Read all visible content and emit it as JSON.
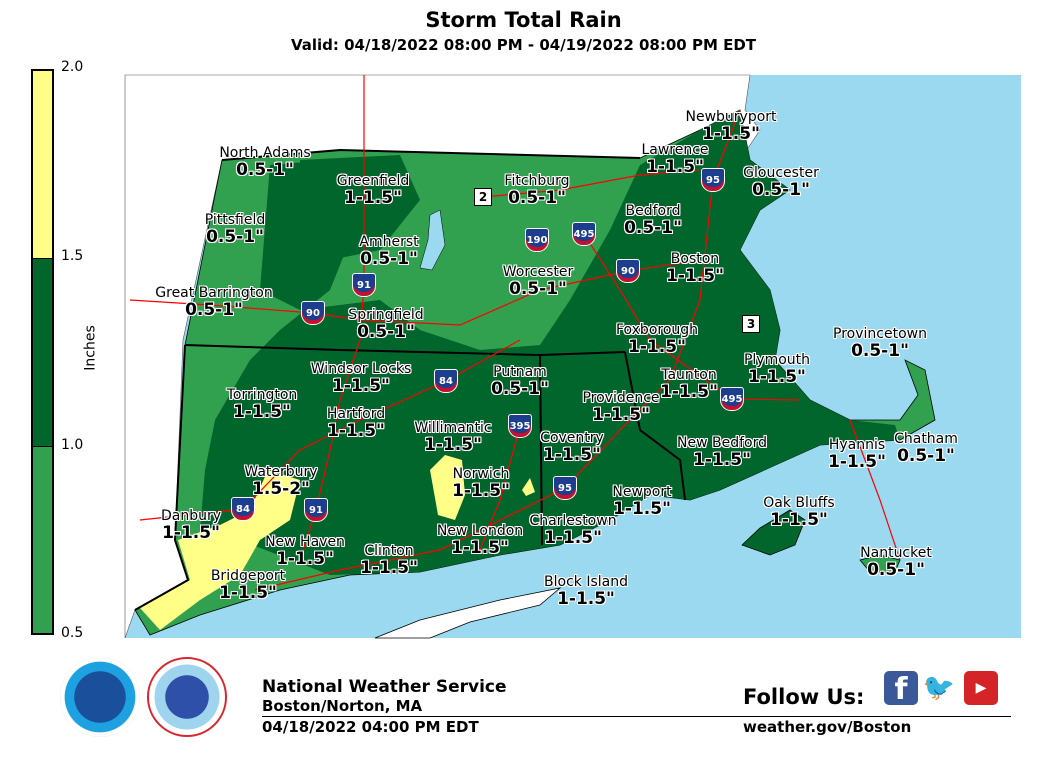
{
  "header": {
    "title": "Storm Total Rain",
    "subtitle": "Valid: 04/18/2022 08:00 PM - 04/19/2022 08:00 PM EDT"
  },
  "legend": {
    "units": "Inches",
    "ticks": [
      "2.0",
      "1.5",
      "1.0",
      "0.5"
    ],
    "bins": [
      {
        "range": "1.5-2.0",
        "color": "#ffff88"
      },
      {
        "range": "1.0-1.5",
        "color": "#00662b"
      },
      {
        "range": "0.5-1.0",
        "color": "#31a150"
      }
    ]
  },
  "colors": {
    "ocean": "#9ad9ef",
    "outside_land": "#ffffff",
    "roads": "#ff0000",
    "borders": "#000000"
  },
  "locations": [
    {
      "name": "North Adams",
      "value": "0.5-1\""
    },
    {
      "name": "Greenfield",
      "value": "1-1.5\""
    },
    {
      "name": "Fitchburg",
      "value": "0.5-1\""
    },
    {
      "name": "Newburyport",
      "value": "1-1.5\""
    },
    {
      "name": "Lawrence",
      "value": "1-1.5\""
    },
    {
      "name": "Gloucester",
      "value": "0.5-1\""
    },
    {
      "name": "Pittsfield",
      "value": "0.5-1\""
    },
    {
      "name": "Amherst",
      "value": "0.5-1\""
    },
    {
      "name": "Bedford",
      "value": "0.5-1\""
    },
    {
      "name": "Worcester",
      "value": "0.5-1\""
    },
    {
      "name": "Boston",
      "value": "1-1.5\""
    },
    {
      "name": "Great Barrington",
      "value": "0.5-1\""
    },
    {
      "name": "Springfield",
      "value": "0.5-1\""
    },
    {
      "name": "Foxborough",
      "value": "1-1.5\""
    },
    {
      "name": "Provincetown",
      "value": "0.5-1\""
    },
    {
      "name": "Windsor Locks",
      "value": "1-1.5\""
    },
    {
      "name": "Putnam",
      "value": "0.5-1\""
    },
    {
      "name": "Plymouth",
      "value": "1-1.5\""
    },
    {
      "name": "Torrington",
      "value": "1-1.5\""
    },
    {
      "name": "Taunton",
      "value": "1-1.5\""
    },
    {
      "name": "Providence",
      "value": "1-1.5\""
    },
    {
      "name": "Hartford",
      "value": "1-1.5\""
    },
    {
      "name": "Willimantic",
      "value": "1-1.5\""
    },
    {
      "name": "Coventry",
      "value": "1-1.5\""
    },
    {
      "name": "New Bedford",
      "value": "1-1.5\""
    },
    {
      "name": "Hyannis",
      "value": "1-1.5\""
    },
    {
      "name": "Chatham",
      "value": "0.5-1\""
    },
    {
      "name": "Waterbury",
      "value": "1.5-2\""
    },
    {
      "name": "Norwich",
      "value": "1-1.5\""
    },
    {
      "name": "Newport",
      "value": "1-1.5\""
    },
    {
      "name": "Oak Bluffs",
      "value": "1-1.5\""
    },
    {
      "name": "Danbury",
      "value": "1-1.5\""
    },
    {
      "name": "Charlestown",
      "value": "1-1.5\""
    },
    {
      "name": "New Haven",
      "value": "1-1.5\""
    },
    {
      "name": "New London",
      "value": "1-1.5\""
    },
    {
      "name": "Clinton",
      "value": "1-1.5\""
    },
    {
      "name": "Nantucket",
      "value": "0.5-1\""
    },
    {
      "name": "Bridgeport",
      "value": "1-1.5\""
    },
    {
      "name": "Block Island",
      "value": "1-1.5\""
    }
  ],
  "highway_shields": [
    "90",
    "90",
    "91",
    "91",
    "190",
    "495",
    "495",
    "95",
    "95",
    "84",
    "84",
    "395"
  ],
  "route_markers": [
    "2",
    "3"
  ],
  "footer": {
    "org": "National Weather Service",
    "office": "Boston/Norton, MA",
    "issued": "04/18/2022 04:00 PM EDT",
    "follow": "Follow Us:",
    "website": "weather.gov/Boston",
    "logos": {
      "noaa": "NOAA",
      "nws": "NATIONAL WEATHER SERVICE"
    },
    "social": [
      {
        "icon": "facebook-icon",
        "glyph": "f"
      },
      {
        "icon": "twitter-icon",
        "glyph": "🐦"
      },
      {
        "icon": "youtube-icon",
        "glyph": "▶"
      }
    ]
  }
}
